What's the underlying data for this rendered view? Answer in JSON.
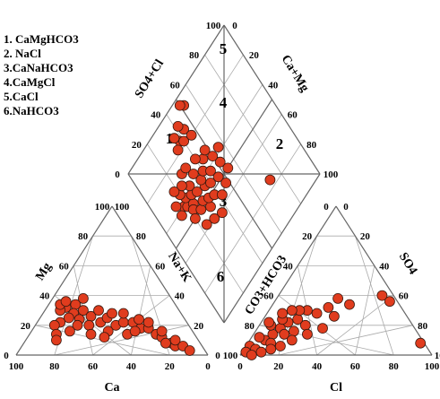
{
  "chart_data": {
    "type": "scatter",
    "subtype": "piper-trilinear-diagram",
    "legend": [
      "1. CaMgHCO3",
      "2. NaCl",
      "3.CaNaHCO3",
      "4.CaMgCl",
      "5.CaCl",
      "6.NaHCO3"
    ],
    "zone_labels": [
      "1",
      "2",
      "3",
      "4",
      "5",
      "6"
    ],
    "cation_triangle": {
      "axis_labels": {
        "bottom": "Ca",
        "left": "Mg",
        "right": "Na+K"
      },
      "bottom_ticks": [
        "100",
        "80",
        "60",
        "40",
        "20",
        "0"
      ],
      "left_ticks": [
        "0",
        "20",
        "40",
        "60",
        "80",
        "100"
      ],
      "right_ticks": [
        "0",
        "20",
        "40",
        "60",
        "80",
        "100"
      ]
    },
    "anion_triangle": {
      "axis_labels": {
        "bottom": "Cl",
        "left": "CO3+HCO3",
        "right": "SO4"
      },
      "bottom_ticks": [
        "0",
        "20",
        "40",
        "60",
        "80",
        "100"
      ],
      "left_ticks": [
        "100",
        "80",
        "60",
        "40",
        "20",
        "0"
      ],
      "right_ticks": [
        "100",
        "80",
        "60",
        "40",
        "20",
        "0"
      ]
    },
    "diamond": {
      "axis_labels": {
        "upper_left": "SO4+Cl",
        "upper_right": "Ca+Mg"
      },
      "left_ticks": [
        "0",
        "20",
        "40",
        "60",
        "80",
        "100"
      ],
      "right_ticks": [
        "100",
        "80",
        "60",
        "40",
        "20",
        "0"
      ]
    },
    "marker_color": "#e03c1e",
    "marker_edge_color": "#3a1a10",
    "cation_points": [
      {
        "ca": 58,
        "mg": 32
      },
      {
        "ca": 52,
        "mg": 34
      },
      {
        "ca": 46,
        "mg": 38
      },
      {
        "ca": 56,
        "mg": 28
      },
      {
        "ca": 50,
        "mg": 30
      },
      {
        "ca": 60,
        "mg": 25
      },
      {
        "ca": 55,
        "mg": 24
      },
      {
        "ca": 48,
        "mg": 26
      },
      {
        "ca": 42,
        "mg": 30
      },
      {
        "ca": 62,
        "mg": 30
      },
      {
        "ca": 66,
        "mg": 22
      },
      {
        "ca": 58,
        "mg": 20
      },
      {
        "ca": 52,
        "mg": 20
      },
      {
        "ca": 45,
        "mg": 22
      },
      {
        "ca": 40,
        "mg": 25
      },
      {
        "ca": 36,
        "mg": 28
      },
      {
        "ca": 38,
        "mg": 20
      },
      {
        "ca": 44,
        "mg": 16
      },
      {
        "ca": 64,
        "mg": 16
      },
      {
        "ca": 70,
        "mg": 20
      },
      {
        "ca": 72,
        "mg": 14
      },
      {
        "ca": 33,
        "mg": 22
      },
      {
        "ca": 30,
        "mg": 28
      },
      {
        "ca": 28,
        "mg": 22
      },
      {
        "ca": 26,
        "mg": 18
      },
      {
        "ca": 24,
        "mg": 24
      },
      {
        "ca": 22,
        "mg": 18
      },
      {
        "ca": 20,
        "mg": 22
      },
      {
        "ca": 20,
        "mg": 14
      },
      {
        "ca": 18,
        "mg": 12
      },
      {
        "ca": 16,
        "mg": 16
      },
      {
        "ca": 15,
        "mg": 8
      },
      {
        "ca": 18,
        "mg": 8
      },
      {
        "ca": 14,
        "mg": 6
      },
      {
        "ca": 12,
        "mg": 10
      },
      {
        "ca": 10,
        "mg": 6
      },
      {
        "ca": 74,
        "mg": 10
      },
      {
        "ca": 54,
        "mg": 14
      },
      {
        "ca": 48,
        "mg": 12
      },
      {
        "ca": 35,
        "mg": 14
      },
      {
        "ca": 30,
        "mg": 16
      },
      {
        "ca": 8,
        "mg": 3
      },
      {
        "ca": 60,
        "mg": 34
      },
      {
        "ca": 56,
        "mg": 36
      }
    ],
    "anion_points": [
      {
        "cl": 8,
        "so4": 10
      },
      {
        "cl": 10,
        "so4": 14
      },
      {
        "cl": 12,
        "so4": 18
      },
      {
        "cl": 6,
        "so4": 20
      },
      {
        "cl": 4,
        "so4": 12
      },
      {
        "cl": 14,
        "so4": 22
      },
      {
        "cl": 18,
        "so4": 24
      },
      {
        "cl": 20,
        "so4": 30
      },
      {
        "cl": 16,
        "so4": 30
      },
      {
        "cl": 26,
        "so4": 28
      },
      {
        "cl": 30,
        "so4": 32
      },
      {
        "cl": 36,
        "so4": 26
      },
      {
        "cl": 2,
        "so4": 6
      },
      {
        "cl": 6,
        "so4": 4
      },
      {
        "cl": 12,
        "so4": 8
      },
      {
        "cl": 16,
        "so4": 14
      },
      {
        "cl": 20,
        "so4": 16
      },
      {
        "cl": 24,
        "so4": 20
      },
      {
        "cl": 10,
        "so4": 24
      },
      {
        "cl": 8,
        "so4": 28
      },
      {
        "cl": 12,
        "so4": 30
      },
      {
        "cl": 4,
        "so4": 22
      },
      {
        "cl": 22,
        "so4": 10
      },
      {
        "cl": 28,
        "so4": 14
      },
      {
        "cl": 14,
        "so4": 4
      },
      {
        "cl": 18,
        "so4": 6
      },
      {
        "cl": 34,
        "so4": 18
      },
      {
        "cl": 32,
        "so4": 38
      },
      {
        "cl": 40,
        "so4": 34
      },
      {
        "cl": 54,
        "so4": 40
      },
      {
        "cl": 60,
        "so4": 36
      },
      {
        "cl": 90,
        "so4": 8
      },
      {
        "cl": 2,
        "so4": 2
      },
      {
        "cl": 6,
        "so4": 0
      },
      {
        "cl": 10,
        "so4": 2
      }
    ],
    "diamond_points": [
      {
        "so4cl": 18,
        "namg": 60
      },
      {
        "so4cl": 20,
        "namg": 58
      },
      {
        "so4cl": 22,
        "namg": 62
      },
      {
        "so4cl": 24,
        "namg": 56
      },
      {
        "so4cl": 26,
        "namg": 60
      },
      {
        "so4cl": 28,
        "namg": 64
      },
      {
        "so4cl": 30,
        "namg": 58
      },
      {
        "so4cl": 22,
        "namg": 54
      },
      {
        "so4cl": 26,
        "namg": 50
      },
      {
        "so4cl": 30,
        "namg": 52
      },
      {
        "so4cl": 32,
        "namg": 46
      },
      {
        "so4cl": 34,
        "namg": 50
      },
      {
        "so4cl": 36,
        "namg": 56
      },
      {
        "so4cl": 38,
        "namg": 48
      },
      {
        "so4cl": 40,
        "namg": 54
      },
      {
        "so4cl": 20,
        "namg": 66
      },
      {
        "so4cl": 24,
        "namg": 68
      },
      {
        "so4cl": 18,
        "namg": 70
      },
      {
        "so4cl": 28,
        "namg": 72
      },
      {
        "so4cl": 34,
        "namg": 66
      },
      {
        "so4cl": 36,
        "namg": 60
      },
      {
        "so4cl": 42,
        "namg": 44
      },
      {
        "so4cl": 40,
        "namg": 62
      },
      {
        "so4cl": 44,
        "namg": 58
      },
      {
        "so4cl": 46,
        "namg": 52
      },
      {
        "so4cl": 48,
        "namg": 46
      },
      {
        "so4cl": 52,
        "namg": 56
      },
      {
        "so4cl": 50,
        "namg": 62
      },
      {
        "so4cl": 54,
        "namg": 50
      },
      {
        "so4cl": 30,
        "namg": 40
      },
      {
        "so4cl": 36,
        "namg": 38
      },
      {
        "so4cl": 24,
        "namg": 42
      },
      {
        "so4cl": 14,
        "namg": 58
      },
      {
        "so4cl": 32,
        "namg": 72
      },
      {
        "so4cl": 44,
        "namg": 66
      },
      {
        "so4cl": 56,
        "namg": 62
      },
      {
        "so4cl": 20,
        "namg": 50
      },
      {
        "so4cl": 40,
        "namg": 70
      },
      {
        "so4cl": 48,
        "namg": 68
      },
      {
        "so4cl": 14,
        "namg": 64
      },
      {
        "so4cl": 38,
        "namg": 84
      },
      {
        "so4cl": 40,
        "namg": 82
      },
      {
        "so4cl": 36,
        "namg": 88
      },
      {
        "so4cl": 44,
        "namg": 86
      },
      {
        "so4cl": 34,
        "namg": 82
      },
      {
        "so4cl": 42,
        "namg": 90
      },
      {
        "so4cl": 46,
        "namg": 80
      },
      {
        "so4cl": 52,
        "namg": 94
      },
      {
        "so4cl": 50,
        "namg": 96
      },
      {
        "so4cl": 72,
        "namg": 24
      }
    ]
  }
}
